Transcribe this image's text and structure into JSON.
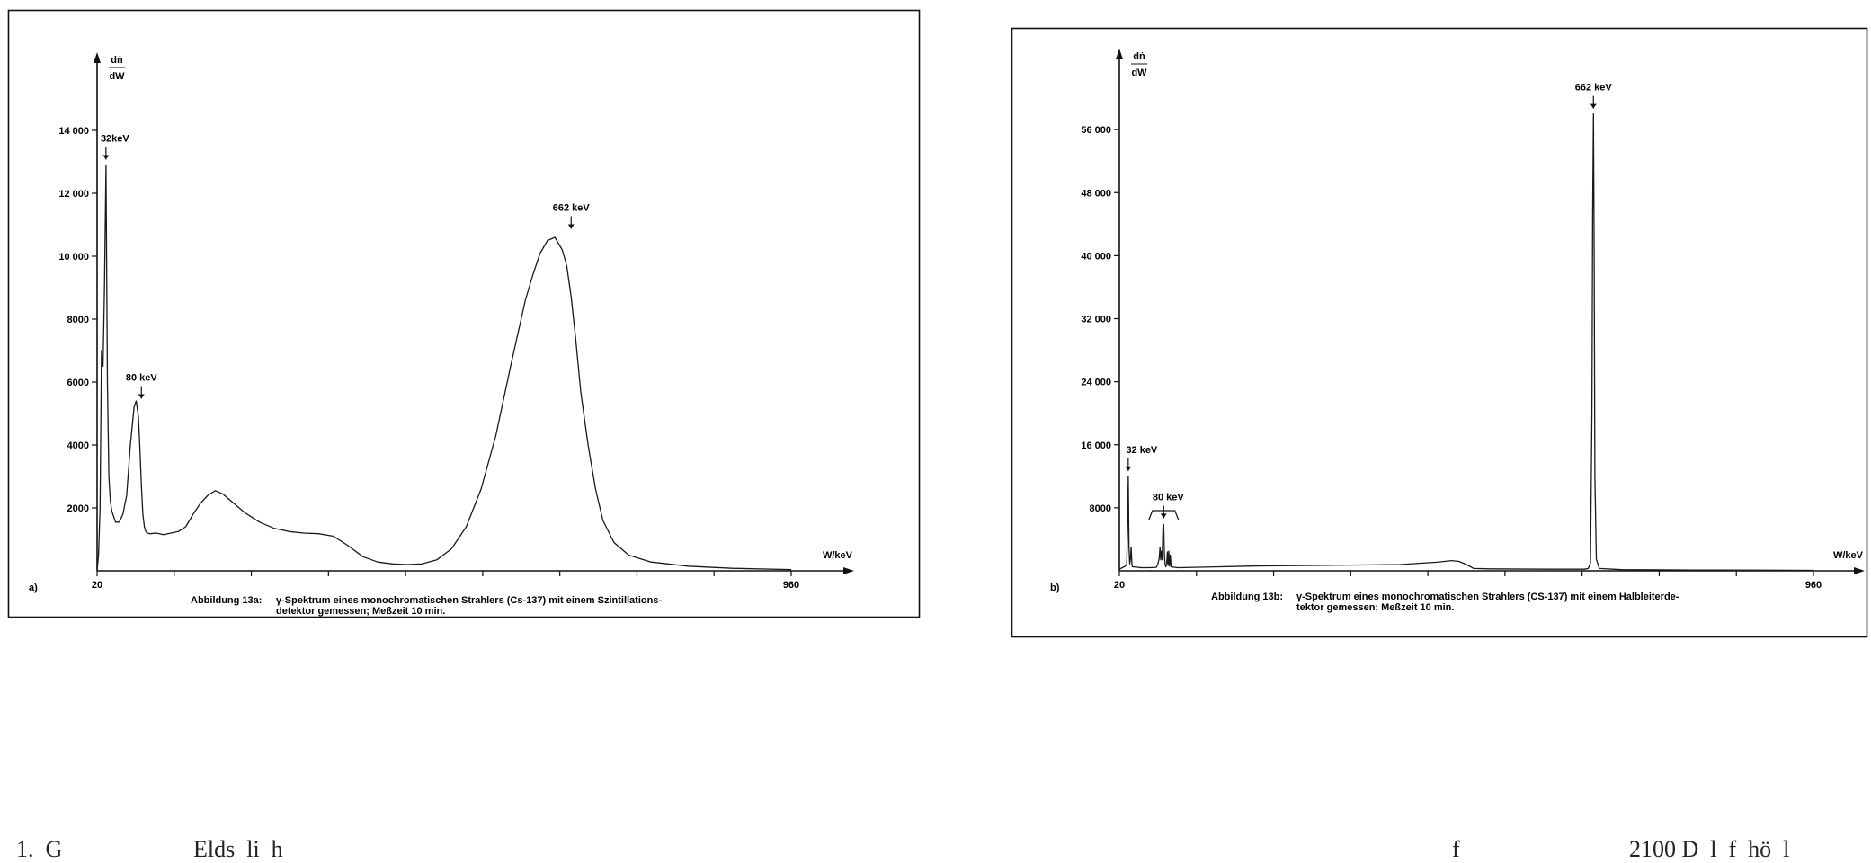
{
  "chart_data": [
    {
      "type": "line",
      "panel_label": "a)",
      "ylabel_num": "dṅ",
      "ylabel_den": "dW",
      "xlabel": "W/keV",
      "x_tick_labels": [
        "20",
        "960"
      ],
      "y_tick_labels": [
        "2000",
        "4000",
        "6000",
        "8000",
        "10 000",
        "12 000",
        "14 000"
      ],
      "xlim": [
        20,
        960
      ],
      "ylim": [
        0,
        16000
      ],
      "caption_prefix": "Abbildung 13a:",
      "caption_line1": "γ-Spektrum eines monochromatischen Strahlers (Cs-137) mit einem Szintillations-",
      "caption_line2": "detektor gemessen; Meßzeit 10 min.",
      "annotations": [
        {
          "label": "32keV",
          "x": 32,
          "y": 12900
        },
        {
          "label": "80 keV",
          "x": 80,
          "y": 5300
        },
        {
          "label": "662 keV",
          "x": 662,
          "y": 10700
        }
      ],
      "series": [
        {
          "x": [
            20,
            22,
            24,
            26,
            28,
            30,
            32,
            34,
            36,
            38,
            40,
            45,
            50,
            55,
            60,
            65,
            70,
            73,
            76,
            78,
            80,
            82,
            84,
            86,
            88,
            92,
            100,
            110,
            120,
            130,
            140,
            150,
            160,
            170,
            180,
            190,
            200,
            210,
            220,
            240,
            260,
            280,
            300,
            320,
            340,
            360,
            380,
            400,
            420,
            440,
            460,
            480,
            500,
            520,
            540,
            560,
            580,
            600,
            610,
            620,
            630,
            640,
            650,
            656,
            662,
            668,
            675,
            685,
            695,
            705,
            720,
            740,
            770,
            820,
            880,
            960
          ],
          "y": [
            0,
            500,
            2000,
            7000,
            6500,
            9000,
            12900,
            6000,
            3000,
            2200,
            1900,
            1550,
            1550,
            1800,
            2400,
            4000,
            5200,
            5400,
            4900,
            3900,
            2700,
            1800,
            1400,
            1250,
            1200,
            1180,
            1200,
            1150,
            1200,
            1250,
            1400,
            1800,
            2150,
            2400,
            2550,
            2450,
            2250,
            2050,
            1850,
            1550,
            1350,
            1250,
            1200,
            1180,
            1100,
            800,
            450,
            280,
            220,
            200,
            220,
            350,
            700,
            1400,
            2600,
            4300,
            6500,
            8600,
            9400,
            10100,
            10500,
            10600,
            10200,
            9700,
            8700,
            7400,
            5700,
            4000,
            2600,
            1600,
            900,
            500,
            280,
            150,
            80,
            40
          ]
        }
      ]
    },
    {
      "type": "line",
      "panel_label": "b)",
      "ylabel_num": "dṅ",
      "ylabel_den": "dW",
      "xlabel": "W/keV",
      "x_tick_labels": [
        "20",
        "960"
      ],
      "y_tick_labels": [
        "8000",
        "16 000",
        "24 000",
        "32 000",
        "40 000",
        "48 000",
        "56 000"
      ],
      "xlim": [
        20,
        960
      ],
      "ylim": [
        0,
        64000
      ],
      "caption_prefix": "Abbildung 13b:",
      "caption_line1": "γ-Spektrum eines monochromatischen Strahlers (CS-137) mit einem Halbleiterde-",
      "caption_line2": "tektor gemessen; Meßzeit 10 min.",
      "annotations": [
        {
          "label": "32 keV",
          "x": 32,
          "y": 12000
        },
        {
          "label": "80 keV",
          "x": 80,
          "y": 6000
        },
        {
          "label": "662 keV",
          "x": 662,
          "y": 58000
        }
      ],
      "series": [
        {
          "x": [
            20,
            24,
            28,
            30,
            31,
            32,
            33,
            34,
            35,
            36,
            37,
            38,
            40,
            50,
            60,
            70,
            72,
            74,
            75,
            76,
            77,
            78,
            79,
            80,
            81,
            82,
            83,
            84,
            85,
            86,
            87,
            88,
            89,
            90,
            100,
            150,
            200,
            300,
            400,
            450,
            470,
            480,
            490,
            500,
            520,
            600,
            650,
            655,
            658,
            660,
            661,
            662,
            663,
            664,
            666,
            670,
            700,
            800,
            900,
            960
          ],
          "y": [
            200,
            400,
            600,
            800,
            5000,
            12000,
            3000,
            900,
            1500,
            3000,
            700,
            500,
            500,
            400,
            400,
            450,
            800,
            1600,
            3000,
            1400,
            2500,
            1400,
            5500,
            5900,
            2000,
            800,
            500,
            900,
            2400,
            700,
            2500,
            600,
            2000,
            500,
            400,
            500,
            600,
            700,
            800,
            1100,
            1300,
            1200,
            800,
            300,
            250,
            200,
            200,
            300,
            1000,
            20000,
            45000,
            58000,
            40000,
            12000,
            1500,
            300,
            150,
            100,
            80,
            60
          ]
        }
      ]
    }
  ],
  "bottom_text": [
    {
      "text": "1.  G",
      "side": "left"
    },
    {
      "text": "Elds  li  h",
      "side": "left"
    },
    {
      "text": "f",
      "side": "right"
    },
    {
      "text": "2100 D  l  f  hö  l",
      "side": "right"
    }
  ]
}
